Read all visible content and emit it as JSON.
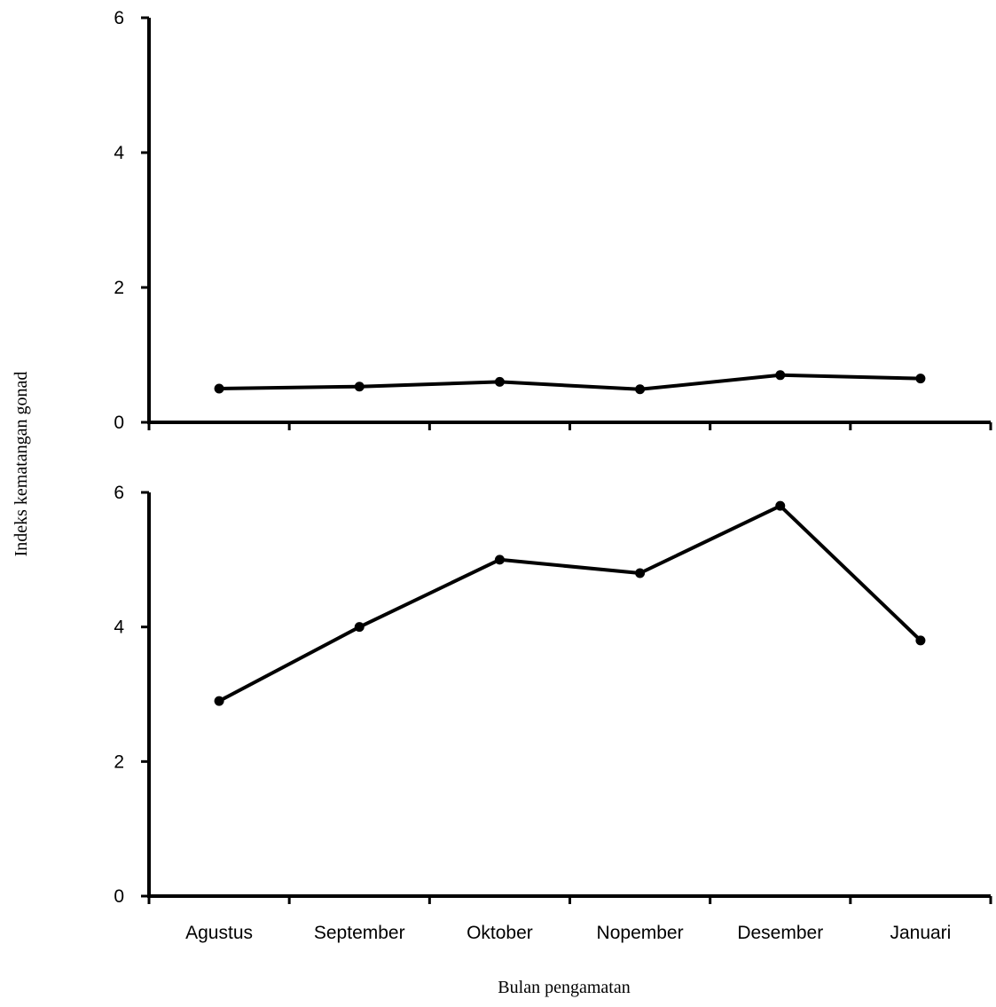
{
  "chart_data": {
    "type": "line",
    "xlabel": "Bulan pengamatan",
    "ylabel": "Indeks kematangan gonad",
    "categories": [
      "Agustus",
      "September",
      "Oktober",
      "Nopember",
      "Desember",
      "Januari"
    ],
    "panels": [
      {
        "ylim": [
          0,
          6
        ],
        "yticks": [
          0,
          2,
          4,
          6
        ],
        "series": [
          {
            "values": [
              0.5,
              0.53,
              0.6,
              0.49,
              0.7,
              0.65
            ]
          }
        ]
      },
      {
        "ylim": [
          0,
          6
        ],
        "yticks": [
          0,
          2,
          4,
          6
        ],
        "series": [
          {
            "values": [
              2.9,
              4.0,
              5.0,
              4.8,
              5.8,
              3.8
            ]
          }
        ]
      }
    ],
    "grid": false,
    "legend": "none",
    "line_color": "#000000"
  }
}
